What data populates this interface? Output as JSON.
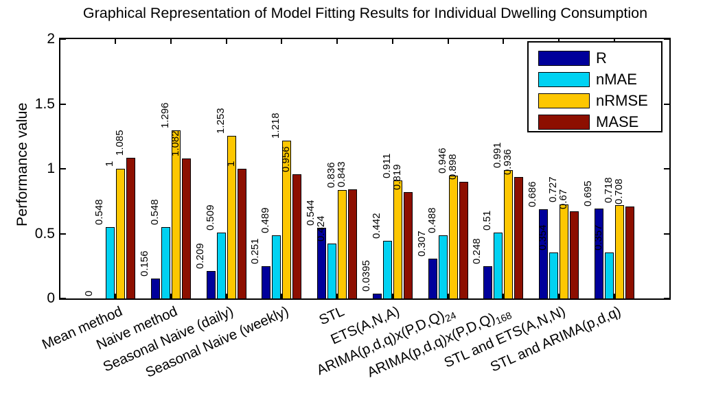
{
  "chart_data": {
    "type": "bar",
    "title": "Graphical Representation of Model Fitting Results for Individual Dwelling Consumption",
    "xlabel": "",
    "ylabel": "Performance value",
    "ylim": [
      0,
      2
    ],
    "yticks": [
      "0",
      "0.5",
      "1",
      "1.5",
      "2"
    ],
    "grid": false,
    "legend_position": "top-right",
    "bar_outline_color": "#000000",
    "axis_color": "#000000",
    "background_color": "#ffffff",
    "categories": [
      "Mean method",
      "Naive method",
      "Seasonal Naive (daily)",
      "Seasonal Naive (weekly)",
      "STL",
      "ETS(A,N,A)",
      "ARIMA(p,d,q)x(P,D,Q)_{24}",
      "ARIMA(p,d,q)x(P,D,Q)_{168}",
      "STL and ETS(A,N,N)",
      "STL and ARIMA(p,d,q)"
    ],
    "series": [
      {
        "name": "R",
        "color": "#00009B",
        "values": [
          "0",
          "0.156",
          "0.209",
          "0.251",
          "0.544",
          "0.0395",
          "0.307",
          "0.248",
          "0.686",
          "0.695"
        ]
      },
      {
        "name": "nMAE",
        "color": "#00D2F2",
        "values": [
          "0.548",
          "0.548",
          "0.509",
          "0.489",
          "0.424",
          "0.442",
          "0.488",
          "0.51",
          "0.354",
          "0.357"
        ]
      },
      {
        "name": "nRMSE",
        "color": "#FDC701",
        "values": [
          "1",
          "1.296",
          "1.253",
          "1.218",
          "0.836",
          "0.911",
          "0.946",
          "0.991",
          "0.727",
          "0.718"
        ]
      },
      {
        "name": "MASE",
        "color": "#8D0F00",
        "values": [
          "1.085",
          "1.082",
          "1",
          "0.956",
          "0.843",
          "0.819",
          "0.898",
          "0.936",
          "0.67",
          "0.708"
        ]
      }
    ]
  }
}
